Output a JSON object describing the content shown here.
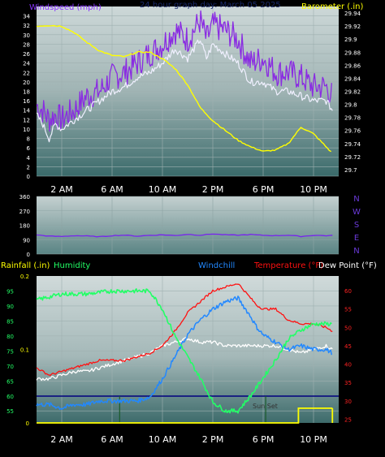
{
  "colors": {
    "wind": "#8833ff",
    "gust": "#8a2be2",
    "barometer": "#ffff00",
    "winddir": "#7722ee",
    "humidity": "#22ff66",
    "windchill": "#2288ff",
    "temperature": "#ff1111",
    "dewpoint": "#ffffff",
    "rain": "#ffff00",
    "daynight": "#000080",
    "sunset": "#ffffff"
  },
  "chart_data": [
    {
      "id": "wind-baro",
      "type": "line",
      "title": "24 hour graph day: March 05 2025",
      "ylabel_left": "Windspeed (mph)",
      "ylabel_right": "Barometer (.in)",
      "x_ticks": [
        "2 AM",
        "6 AM",
        "10 AM",
        "2 PM",
        "6 PM",
        "10 PM"
      ],
      "x_hours": [
        2,
        6,
        10,
        14,
        18,
        22
      ],
      "x_range": [
        0,
        24
      ],
      "ylim_left": [
        0,
        36
      ],
      "ylim_right": [
        29.69,
        29.95
      ],
      "yticks_left": [
        "0",
        "2",
        "4",
        "6",
        "8",
        "10",
        "12",
        "14",
        "16",
        "18",
        "20",
        "22",
        "24",
        "26",
        "28",
        "30",
        "32",
        "34"
      ],
      "yticks_right": [
        "29.7",
        "29.72",
        "29.74",
        "29.76",
        "29.78",
        "29.8",
        "29.82",
        "29.84",
        "29.86",
        "29.88",
        "29.9",
        "29.92",
        "29.94"
      ],
      "grid": true,
      "series": [
        {
          "name": "Windspeed",
          "x": [
            0,
            0.5,
            1,
            1.5,
            2,
            3,
            4,
            5,
            6,
            7,
            8,
            9,
            10,
            11,
            12,
            13,
            13.5,
            14,
            15,
            16,
            17,
            18,
            19,
            20,
            21,
            22,
            23,
            23.5
          ],
          "y": [
            13,
            11,
            8,
            11,
            10,
            12,
            14,
            16,
            18,
            19,
            21,
            22,
            24,
            27,
            25,
            29,
            25,
            28,
            26,
            24,
            20,
            20,
            18,
            18,
            17,
            16,
            16,
            14
          ]
        },
        {
          "name": "Gust",
          "x": [
            0,
            0.5,
            1,
            1.5,
            2,
            3,
            4,
            5,
            6,
            7,
            8,
            9,
            10,
            11,
            12,
            13,
            13.5,
            14,
            15,
            16,
            17,
            18,
            19,
            20,
            21,
            22,
            23,
            23.5
          ],
          "y": [
            15,
            14,
            12,
            13,
            12,
            14,
            17,
            18,
            21,
            22,
            24,
            26,
            28,
            31,
            29,
            33,
            29,
            32,
            31,
            29,
            24,
            25,
            22,
            22,
            21,
            19,
            19,
            17
          ]
        },
        {
          "name": "Barometer",
          "x": [
            0,
            1,
            2,
            3,
            4,
            5,
            6,
            7,
            8,
            9,
            10,
            11,
            12,
            13,
            14,
            15,
            16,
            17,
            18,
            19,
            20,
            21,
            22,
            23,
            23.5
          ],
          "y": [
            29.92,
            29.921,
            29.92,
            29.91,
            29.895,
            29.882,
            29.875,
            29.873,
            29.88,
            29.88,
            29.87,
            29.855,
            29.83,
            29.795,
            29.775,
            29.76,
            29.745,
            29.735,
            29.728,
            29.73,
            29.74,
            29.765,
            29.755,
            29.735,
            29.725
          ]
        }
      ]
    },
    {
      "id": "winddir",
      "type": "line",
      "ylabel_right": [
        "N",
        "W",
        "S",
        "E",
        "N"
      ],
      "ylim": [
        0,
        360
      ],
      "yticks": [
        "0",
        "90",
        "180",
        "270",
        "360"
      ],
      "x_range": [
        0,
        24
      ],
      "grid": true,
      "series": [
        {
          "name": "Wind Direction",
          "x": [
            0,
            1,
            2,
            3,
            4,
            5,
            6,
            7,
            8,
            9,
            10,
            11,
            12,
            13,
            14,
            15,
            16,
            17,
            18,
            19,
            20,
            21,
            22,
            23,
            23.5
          ],
          "y": [
            120,
            112,
            110,
            115,
            113,
            108,
            115,
            118,
            112,
            117,
            120,
            116,
            123,
            118,
            126,
            120,
            118,
            122,
            117,
            115,
            118,
            110,
            117,
            115,
            116
          ]
        }
      ]
    },
    {
      "id": "temp-hum",
      "type": "line",
      "ylabel_left": "Rainfall (.in)",
      "label_humidity": "Humidity",
      "label_windchill": "Windchill",
      "label_temperature": "Temperature (°F)",
      "label_dewpoint": "Dew Point (°F)",
      "annotation": "Sun Set",
      "x_ticks": [
        "2 AM",
        "6 AM",
        "10 AM",
        "2 PM",
        "6 PM",
        "10 PM"
      ],
      "x_hours": [
        2,
        6,
        10,
        14,
        18,
        22
      ],
      "x_range": [
        0,
        24
      ],
      "ylim_humidity": [
        51,
        100
      ],
      "yticks_humidity": [
        "55",
        "60",
        "65",
        "70",
        "75",
        "80",
        "85",
        "90",
        "95"
      ],
      "ylim_temp": [
        24,
        64
      ],
      "yticks_temp": [
        "25",
        "30",
        "35",
        "40",
        "45",
        "50",
        "55",
        "60"
      ],
      "ylim_rain": [
        0,
        0.2
      ],
      "yticks_rain": [
        "0",
        "0.1",
        "0.2"
      ],
      "grid": true,
      "series": [
        {
          "name": "Humidity",
          "x": [
            0,
            1,
            2,
            4,
            6,
            7,
            8,
            9,
            10,
            11,
            12,
            13,
            14,
            15,
            16,
            17,
            18,
            19,
            20,
            21,
            22,
            23,
            23.5
          ],
          "y": [
            92,
            93,
            94,
            94,
            95,
            95,
            95,
            95,
            89,
            80,
            73,
            66,
            58,
            55,
            55,
            60,
            66,
            72,
            79,
            82,
            84,
            84,
            84
          ]
        },
        {
          "name": "Windchill",
          "x": [
            0,
            1,
            2,
            3,
            4,
            5,
            6,
            7,
            8,
            9,
            10,
            11,
            12,
            13,
            14,
            15,
            16,
            17,
            17.5,
            18,
            19,
            20,
            21,
            22,
            23,
            23.5
          ],
          "y": [
            29,
            29,
            28,
            29,
            29,
            30,
            30,
            30,
            30,
            31,
            36,
            42,
            48,
            52,
            55,
            57,
            58,
            53,
            50,
            48,
            46,
            44,
            45,
            44,
            44,
            43
          ]
        },
        {
          "name": "Temperature",
          "x": [
            0,
            1,
            2,
            3,
            4,
            5,
            6,
            7,
            8,
            9,
            10,
            11,
            12,
            13,
            14,
            15,
            16,
            17,
            17.5,
            18,
            19,
            20,
            21,
            22,
            23,
            23.5
          ],
          "y": [
            39,
            37,
            38,
            39,
            40,
            41,
            41,
            41,
            42,
            43,
            45,
            49,
            54,
            57,
            60,
            61,
            62,
            58,
            56,
            55,
            55,
            52,
            51,
            51,
            50,
            49
          ]
        },
        {
          "name": "Dew Point",
          "x": [
            0,
            1,
            2,
            3,
            4,
            5,
            6,
            7,
            8,
            9,
            10,
            11,
            12,
            13,
            14,
            15,
            16,
            17,
            18,
            19,
            20,
            21,
            22,
            23,
            23.5
          ],
          "y": [
            36,
            36,
            37,
            38,
            38,
            39,
            40,
            41,
            42,
            43,
            45,
            46,
            47,
            46,
            46,
            45,
            45,
            45,
            45,
            45,
            44,
            43,
            44,
            45,
            44
          ]
        },
        {
          "name": "Rainfall",
          "x": [
            0,
            1,
            20,
            20.8,
            20.8,
            23.5
          ],
          "y": [
            0,
            0,
            0,
            0,
            0.02,
            0.02
          ]
        }
      ]
    }
  ]
}
